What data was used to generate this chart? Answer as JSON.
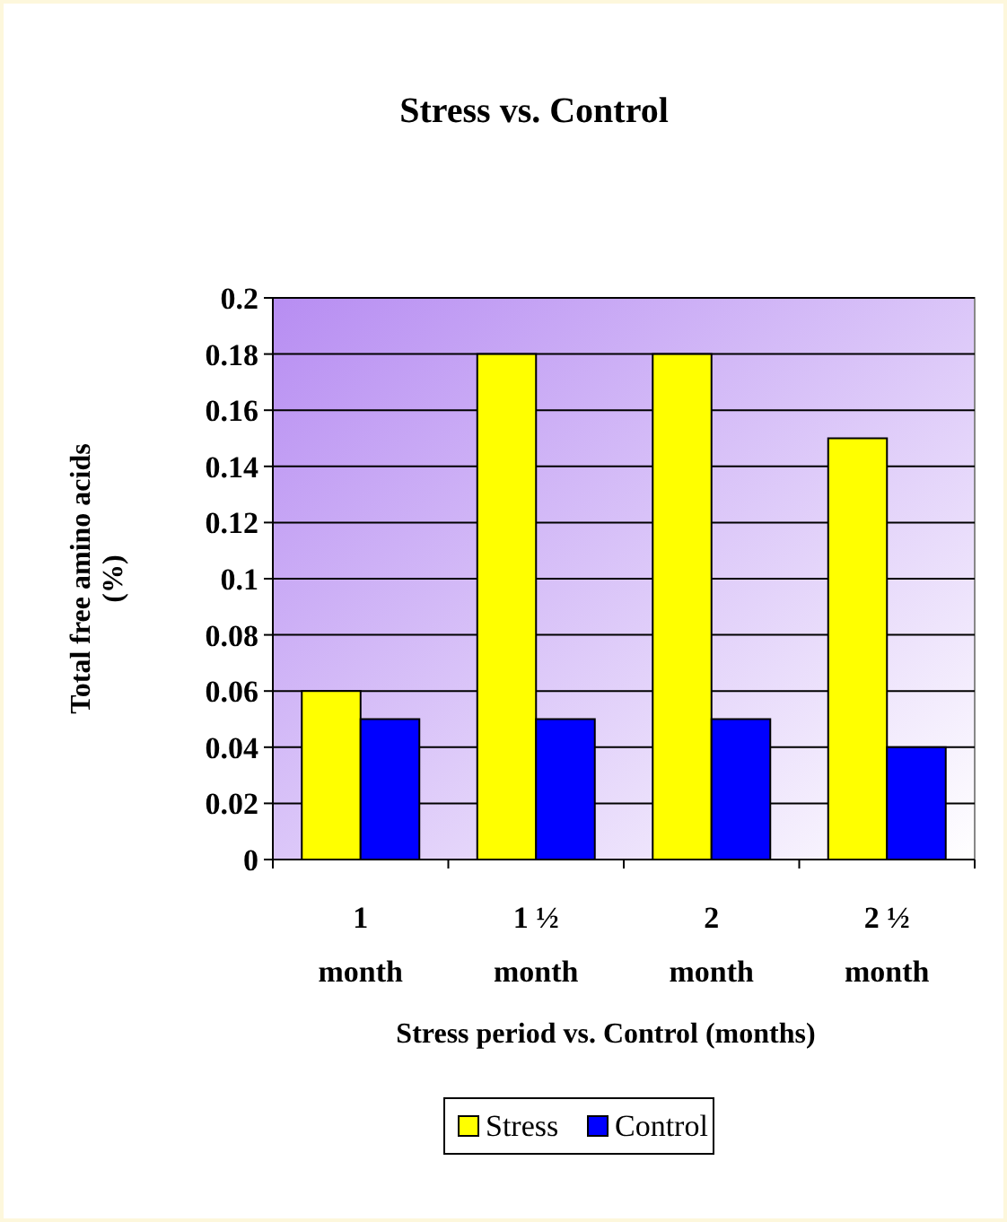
{
  "chart_data": {
    "type": "bar",
    "title": "Stress vs. Control",
    "xlabel": "Stress period vs. Control (months)",
    "ylabel": "Total free amino acids (%)",
    "categories": [
      "1 month",
      "1 ½ month",
      "2 month",
      "2 ½ month"
    ],
    "series": [
      {
        "name": "Stress",
        "color": "#ffff00",
        "values": [
          0.06,
          0.18,
          0.18,
          0.15
        ]
      },
      {
        "name": "Control",
        "color": "#0000ff",
        "values": [
          0.05,
          0.05,
          0.05,
          0.04
        ]
      }
    ],
    "ylim": [
      0,
      0.2
    ],
    "yticks": [
      0,
      0.02,
      0.04,
      0.06,
      0.08,
      0.1,
      0.12,
      0.14,
      0.16,
      0.18,
      0.2
    ],
    "grid": "y",
    "legend": "bottom"
  }
}
